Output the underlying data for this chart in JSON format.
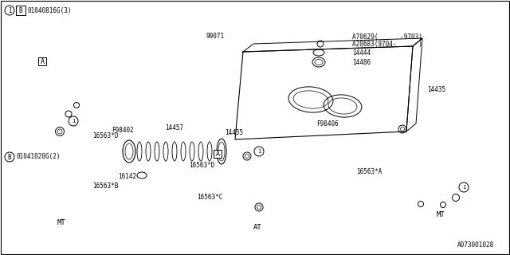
{
  "bg_color": "#ffffff",
  "line_color": "#000000",
  "fig_width": 6.4,
  "fig_height": 3.2,
  "dpi": 100,
  "labels": {
    "top_box": "①  Ⓑ 01040816G(3)",
    "part_99071": "99071",
    "part_F98402": "F98402",
    "part_14457": "14457",
    "part_14455": "14455",
    "part_16563D_left": "16563*D",
    "part_16563B": "16563*B",
    "part_16142": "16142",
    "part_A70629": "A70629(      -9703)",
    "part_A20683": "A20683(9704-      )",
    "part_14444": "14444",
    "part_14486": "14486",
    "part_14435": "14435",
    "part_F98406": "F98406",
    "part_16563D_center": "16563*D",
    "part_16563C": "16563*C",
    "part_16563A": "16563*A",
    "ref_B2": "Ⓑ 01041020G(2)",
    "label_MT_left": "MT",
    "label_MT_right": "MT",
    "label_AT": "AT",
    "diagram_num": "A073001028"
  },
  "font_size": 5.5,
  "font_size_med": 6.5
}
